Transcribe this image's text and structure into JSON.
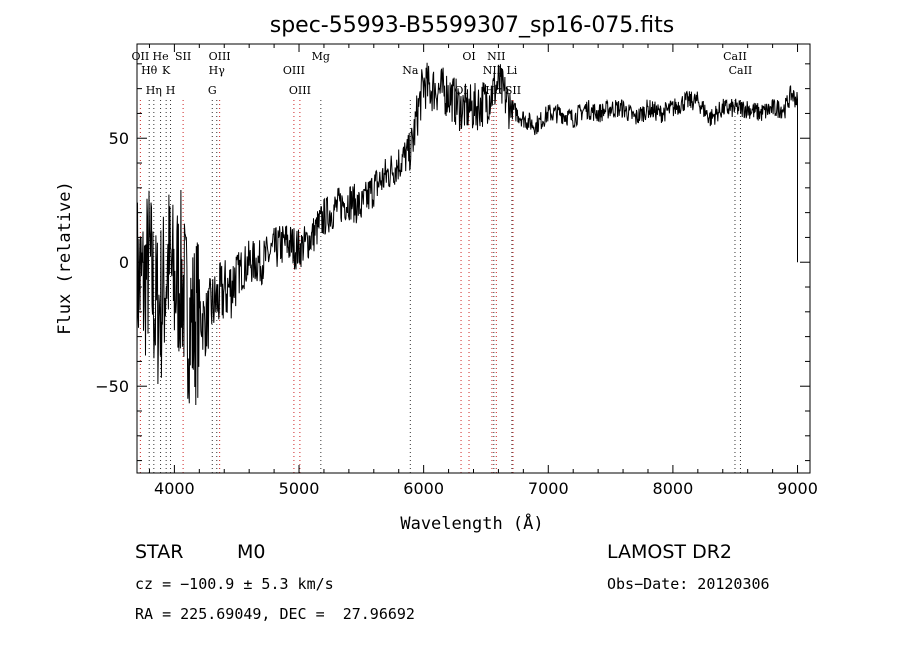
{
  "chart_data": {
    "type": "line",
    "title": "spec-55993-B5599307_sp16-075.fits",
    "xlabel": "Wavelength (Å)",
    "ylabel": "Flux (relative)",
    "xlim": [
      3700,
      9100
    ],
    "ylim": [
      -85,
      88
    ],
    "xticks": [
      4000,
      5000,
      6000,
      7000,
      8000,
      9000
    ],
    "yticks": [
      -50,
      0,
      50
    ],
    "grid": false,
    "series": [
      {
        "x": [
          3700,
          3750,
          3800,
          3850,
          3900,
          3950,
          4000,
          4050,
          4100,
          4150,
          4200,
          4250,
          4300,
          4350,
          4400,
          4450,
          4500,
          4600,
          4700,
          4800,
          4900,
          5000,
          5100,
          5200,
          5300,
          5400,
          5500,
          5600,
          5700,
          5800,
          5900,
          5950,
          6000,
          6050,
          6100,
          6200,
          6300,
          6400,
          6500,
          6600,
          6700,
          6800,
          6900,
          7000,
          7100,
          7200,
          7300,
          7400,
          7500,
          7600,
          7700,
          7800,
          7900,
          8000,
          8100,
          8200,
          8300,
          8400,
          8500,
          8600,
          8700,
          8800,
          8900,
          8950,
          9000
        ],
        "y": [
          -5,
          -10,
          0,
          -20,
          -15,
          0,
          -10,
          -5,
          -20,
          -25,
          -20,
          -25,
          -18,
          -15,
          -12,
          -10,
          -5,
          0,
          0,
          5,
          8,
          5,
          10,
          18,
          22,
          25,
          22,
          30,
          35,
          40,
          45,
          60,
          72,
          70,
          70,
          68,
          62,
          62,
          65,
          72,
          62,
          58,
          55,
          60,
          60,
          58,
          62,
          60,
          62,
          62,
          58,
          62,
          60,
          62,
          65,
          65,
          58,
          62,
          62,
          62,
          60,
          62,
          62,
          68,
          65
        ]
      }
    ],
    "lines": [
      {
        "label": "OII",
        "x": 3727,
        "color": "#cc2222"
      },
      {
        "label": "Hθ",
        "x": 3798,
        "color": "#333333"
      },
      {
        "label": "Hη",
        "x": 3835,
        "color": "#333333"
      },
      {
        "label": "He",
        "x": 3889,
        "color": "#333333"
      },
      {
        "label": "K",
        "x": 3934,
        "color": "#333333"
      },
      {
        "label": "H",
        "x": 3969,
        "color": "#333333"
      },
      {
        "label": "SII",
        "x": 4070,
        "color": "#cc2222"
      },
      {
        "label": "Hγ",
        "x": 4340,
        "color": "#333333"
      },
      {
        "label": "G",
        "x": 4304,
        "color": "#333333"
      },
      {
        "label": "OIII",
        "x": 4363,
        "color": "#cc2222"
      },
      {
        "label": "OIII",
        "x": 4959,
        "color": "#cc2222"
      },
      {
        "label": "OIII",
        "x": 5007,
        "color": "#cc2222"
      },
      {
        "label": "Mg",
        "x": 5175,
        "color": "#333333"
      },
      {
        "label": "Na",
        "x": 5893,
        "color": "#333333"
      },
      {
        "label": "OI",
        "x": 6300,
        "color": "#cc2222"
      },
      {
        "label": "OI",
        "x": 6364,
        "color": "#cc2222"
      },
      {
        "label": "NII",
        "x": 6548,
        "color": "#cc2222"
      },
      {
        "label": "Hα",
        "x": 6563,
        "color": "#333333"
      },
      {
        "label": "NII",
        "x": 6583,
        "color": "#cc2222"
      },
      {
        "label": "Li",
        "x": 6708,
        "color": "#333333"
      },
      {
        "label": "SII",
        "x": 6717,
        "color": "#cc2222"
      },
      {
        "label": "CaII",
        "x": 8498,
        "color": "#333333"
      },
      {
        "label": "CaII",
        "x": 8542,
        "color": "#333333"
      }
    ]
  },
  "info": {
    "class": "STAR",
    "subclass": "M0",
    "survey": "LAMOST DR2",
    "cz": "cz = −100.9 ± 5.3 km/s",
    "obs_date": "Obs−Date: 20120306",
    "radec": "RA = 225.69049, DEC =  27.96692"
  }
}
